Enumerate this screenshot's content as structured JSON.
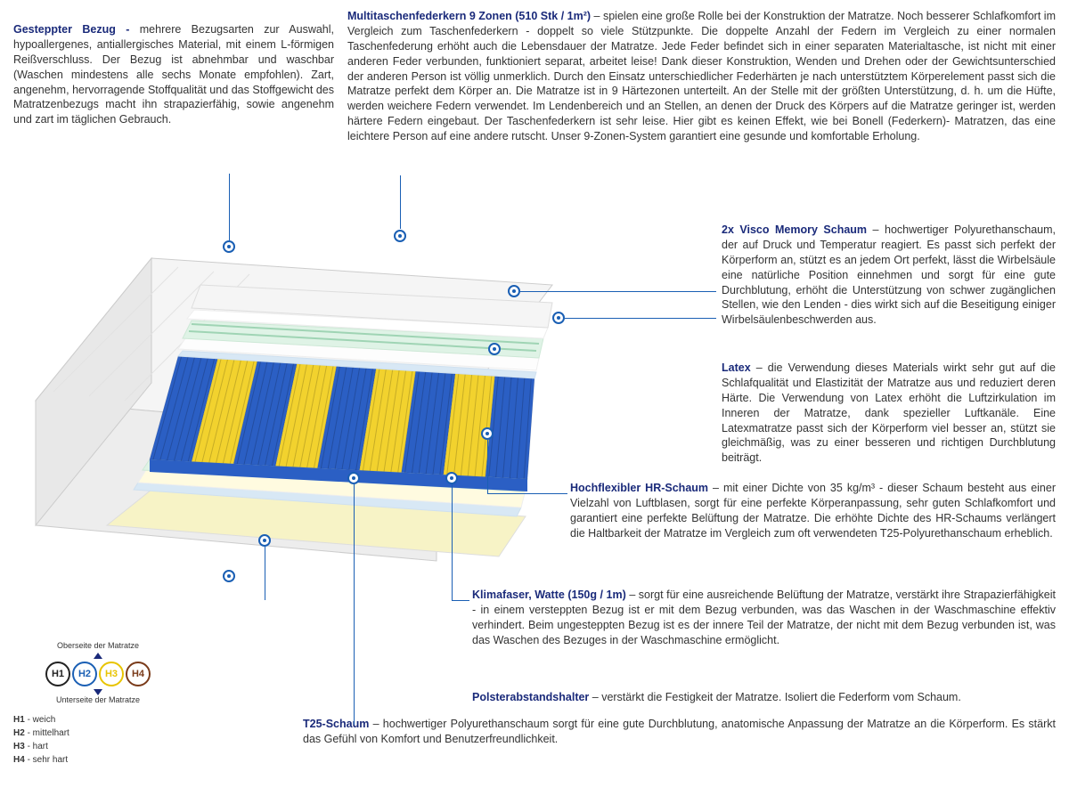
{
  "colors": {
    "heading": "#1a2a7a",
    "text": "#333333",
    "callout_line": "#1a5fb4",
    "h1_border": "#222222",
    "h2_border": "#1a5fb4",
    "h3_border": "#e8c400",
    "h4_border": "#7a3b1a"
  },
  "sections": {
    "bezug": {
      "title": "Gesteppter Bezug - ",
      "body": "mehrere Bezugsarten zur Auswahl, hypoallergenes, antiallergisches Material, mit einem L-förmigen Reißverschluss. Der Bezug ist abnehmbar und waschbar (Waschen mindestens alle sechs Monate empfohlen). Zart, angenehm, hervorragende Stoffqualität und das Stoffgewicht des Matratzenbezugs macht ihn strapazierfähig, sowie angenehm und zart im täglichen Gebrauch."
    },
    "federkern": {
      "title": "Multitaschenfederkern 9 Zonen (510 Stk / 1m²)",
      "body": " – spielen eine große Rolle bei der Konstruktion der Matratze. Noch besserer Schlafkomfort im Vergleich zum Taschenfederkern - doppelt so viele Stützpunkte. Die doppelte Anzahl der Federn im Vergleich zu einer normalen Taschenfederung erhöht auch die Lebensdauer der Matratze. Jede Feder befindet sich in einer separaten Materialtasche, ist nicht mit einer anderen Feder verbunden, funktioniert separat, arbeitet leise! Dank dieser Konstruktion, Wenden und Drehen oder der Gewichtsunterschied der anderen Person ist völlig unmerklich. Durch den Einsatz unterschiedlicher Federhärten je nach unterstütztem Körperelement passt sich die Matratze perfekt dem Körper an. Die Matratze ist in 9 Härtezonen unterteilt. An der Stelle mit der größten Unterstützung, d. h. um die Hüfte, werden weichere Federn verwendet. Im Lendenbereich und an Stellen, an denen der Druck des Körpers auf die Matratze geringer ist, werden härtere Federn eingebaut. Der Taschenfederkern ist sehr leise. Hier gibt es keinen Effekt, wie bei Bonell (Federkern)- Matratzen, das eine leichtere Person auf eine andere rutscht. Unser 9-Zonen-System garantiert eine gesunde und komfortable Erholung."
    },
    "visco": {
      "title": "2x Visco Memory Schaum",
      "body": " – hochwertiger Polyurethanschaum, der auf Druck und Temperatur reagiert. Es passt sich perfekt der Körperform an, stützt es an jedem Ort perfekt, lässt die Wirbelsäule eine natürliche Position einnehmen und sorgt für eine gute Durchblutung, erhöht die Unterstützung von schwer zugänglichen Stellen, wie den Lenden - dies wirkt sich auf die Beseitigung einiger Wirbelsäulenbeschwerden aus."
    },
    "latex": {
      "title": "Latex",
      "body": " – die Verwendung dieses Materials wirkt sehr gut auf die Schlafqualität und Elastizität der Matratze aus und reduziert deren Härte. Die Verwendung von Latex erhöht die Luftzirkulation im Inneren der Matratze, dank spezieller Luftkanäle. Eine Latexmatratze passt sich der Körperform viel besser an, stützt sie gleichmäßig, was zu einer besseren und richtigen Durchblutung beiträgt."
    },
    "hr": {
      "title": "Hochflexibler HR-Schaum",
      "body": " – mit einer Dichte von 35 kg/m³ - dieser Schaum besteht aus einer Vielzahl von Luftblasen, sorgt für eine perfekte Körperanpassung, sehr guten Schlafkomfort und garantiert eine perfekte Belüftung der Matratze. Die erhöhte Dichte des HR-Schaums verlängert die Haltbarkeit der Matratze im Vergleich zum oft verwendeten T25-Polyurethanschaum erheblich."
    },
    "klimafaser": {
      "title": "Klimafaser, Watte (150g / 1m)",
      "body": " – sorgt für eine ausreichende Belüftung der Matratze, verstärkt ihre Strapazierfähigkeit - in einem versteppten Bezug ist er mit dem Bezug verbunden, was das Waschen in der Waschmaschine effektiv verhindert. Beim ungesteppten Bezug ist es der innere Teil der Matratze, der nicht mit dem Bezug verbunden ist, was das Waschen des Bezuges in der Waschmaschine ermöglicht."
    },
    "polster": {
      "title": "Polsterabstandshalter",
      "body": " – verstärkt die Festigkeit der Matratze. Isoliert die Federform vom Schaum."
    },
    "t25": {
      "title": "T25-Schaum",
      "body": " – hochwertiger Polyurethanschaum sorgt für eine gute Durchblutung, anatomische Anpassung der Matratze an die Körperform. Es stärkt das Gefühl von Komfort und Benutzerfreundlichkeit."
    }
  },
  "legend": {
    "top_label": "Oberseite der Matratze",
    "bottom_label": "Unterseite der Matratze",
    "circles": [
      {
        "label": "H1",
        "color": "#222222"
      },
      {
        "label": "H2",
        "color": "#1a5fb4"
      },
      {
        "label": "H3",
        "color": "#e8c400"
      },
      {
        "label": "H4",
        "color": "#7a3b1a"
      }
    ],
    "list": [
      {
        "k": "H1",
        "v": " - weich"
      },
      {
        "k": "H2",
        "v": " - mittelhart"
      },
      {
        "k": "H3",
        "v": " - hart"
      },
      {
        "k": "H4",
        "v": " - sehr hart"
      }
    ]
  },
  "mattress_svg": {
    "zone_colors": [
      "#2b5fc4",
      "#f2d22e",
      "#2b5fc4",
      "#f2d22e",
      "#2b5fc4",
      "#f2d22e",
      "#2b5fc4",
      "#f2d22e",
      "#2b5fc4"
    ],
    "cover": "#f2f2f2",
    "visco_top": "#dff3e6",
    "latex": "#fdfdfd",
    "hr": "#fffbe0",
    "klimafaser": "#ffffff",
    "t25": "#f7f3c6",
    "polster": "#d8e8f5"
  }
}
